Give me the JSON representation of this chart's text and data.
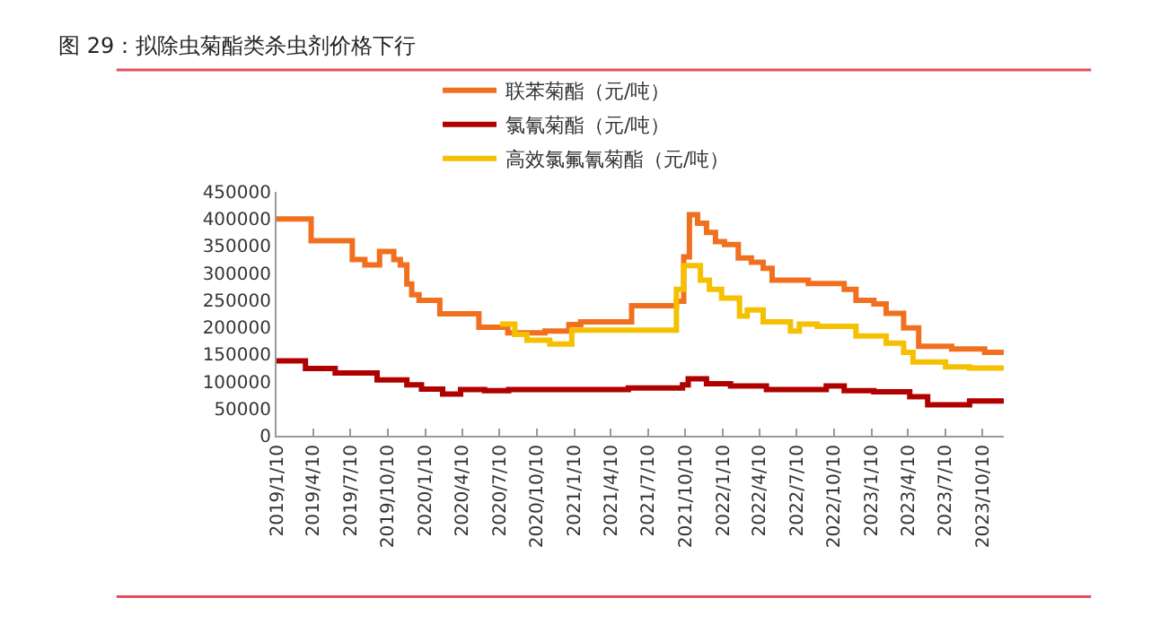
{
  "chart_data": {
    "type": "step",
    "title": "图 29：拟除虫菊酯类杀虫剂价格下行",
    "xlim": [
      "2019-01-10",
      "2023-12-01"
    ],
    "xticks": [
      {
        "value": "2019-01-10",
        "label": "2019/1/10"
      },
      {
        "value": "2019-04-10",
        "label": "2019/4/10"
      },
      {
        "value": "2019-07-10",
        "label": "2019/7/10"
      },
      {
        "value": "2019-10-10",
        "label": "2019/10/10"
      },
      {
        "value": "2020-01-10",
        "label": "2020/1/10"
      },
      {
        "value": "2020-04-10",
        "label": "2020/4/10"
      },
      {
        "value": "2020-07-10",
        "label": "2020/7/10"
      },
      {
        "value": "2020-10-10",
        "label": "2020/10/10"
      },
      {
        "value": "2021-01-10",
        "label": "2021/1/10"
      },
      {
        "value": "2021-04-10",
        "label": "2021/4/10"
      },
      {
        "value": "2021-07-10",
        "label": "2021/7/10"
      },
      {
        "value": "2021-10-10",
        "label": "2021/10/10"
      },
      {
        "value": "2022-01-10",
        "label": "2022/1/10"
      },
      {
        "value": "2022-04-10",
        "label": "2022/4/10"
      },
      {
        "value": "2022-07-10",
        "label": "2022/7/10"
      },
      {
        "value": "2022-10-10",
        "label": "2022/10/10"
      },
      {
        "value": "2023-01-10",
        "label": "2023/1/10"
      },
      {
        "value": "2023-04-10",
        "label": "2023/4/10"
      },
      {
        "value": "2023-07-10",
        "label": "2023/7/10"
      },
      {
        "value": "2023-10-10",
        "label": "2023/10/10"
      }
    ],
    "ylim": [
      0,
      450000
    ],
    "yticks": [
      0,
      50000,
      100000,
      150000,
      200000,
      250000,
      300000,
      350000,
      400000,
      450000
    ],
    "legend": "top",
    "marker": "none",
    "line_style": "solid",
    "series": [
      {
        "name": "联苯菊酯（元/吨）",
        "color": "#f07020",
        "x": [
          "2019-01-10",
          "2019-04-05",
          "2019-07-15",
          "2019-08-15",
          "2019-09-20",
          "2019-10-25",
          "2019-11-10",
          "2019-11-26",
          "2019-12-08",
          "2019-12-26",
          "2020-02-15",
          "2020-05-21",
          "2020-07-31",
          "2020-10-30",
          "2020-12-28",
          "2021-01-26",
          "2021-05-31",
          "2021-09-18",
          "2021-10-06",
          "2021-10-20",
          "2021-11-09",
          "2021-12-01",
          "2021-12-23",
          "2022-01-14",
          "2022-02-17",
          "2022-03-21",
          "2022-04-19",
          "2022-05-11",
          "2022-08-08",
          "2022-11-04",
          "2022-12-03",
          "2023-01-16",
          "2023-02-15",
          "2023-03-30",
          "2023-05-06",
          "2023-07-26",
          "2023-10-15",
          "2023-12-01"
        ],
        "values": [
          400000,
          360000,
          325000,
          315000,
          340000,
          325000,
          315000,
          280000,
          260000,
          250000,
          225000,
          200000,
          190000,
          193000,
          205000,
          210000,
          240000,
          248000,
          330000,
          408000,
          392000,
          375000,
          358000,
          353000,
          328000,
          320000,
          309000,
          287000,
          281000,
          270000,
          250000,
          243000,
          226000,
          199000,
          165000,
          160000,
          154000,
          149000
        ]
      },
      {
        "name": "氯氰菊酯（元/吨）",
        "color": "#b00000",
        "x": [
          "2019-01-10",
          "2019-03-22",
          "2019-06-03",
          "2019-09-14",
          "2019-11-26",
          "2020-01-01",
          "2020-02-22",
          "2020-04-06",
          "2020-06-04",
          "2020-08-02",
          "2021-05-23",
          "2021-10-03",
          "2021-10-17",
          "2021-12-01",
          "2022-01-29",
          "2022-04-27",
          "2022-09-21",
          "2022-11-04",
          "2023-01-16",
          "2023-04-14",
          "2023-05-28",
          "2023-09-08",
          "2023-12-01"
        ],
        "values": [
          138000,
          124000,
          116000,
          103000,
          94000,
          86000,
          77000,
          85000,
          83000,
          85000,
          88000,
          94000,
          105000,
          96000,
          92000,
          85000,
          92000,
          83000,
          81000,
          72000,
          57000,
          64000,
          64000
        ]
      },
      {
        "name": "高效氯氟氰菊酯（元/吨）",
        "color": "#f5c000",
        "x": [
          "2020-07-12",
          "2020-08-17",
          "2020-09-16",
          "2020-11-11",
          "2021-01-04",
          "2021-09-18",
          "2021-10-06",
          "2021-11-16",
          "2021-12-08",
          "2022-01-07",
          "2022-02-20",
          "2022-03-11",
          "2022-04-19",
          "2022-06-25",
          "2022-07-17",
          "2022-08-30",
          "2022-12-03",
          "2023-02-15",
          "2023-03-30",
          "2023-04-22",
          "2023-07-11",
          "2023-09-08",
          "2023-12-01"
        ],
        "values": [
          206000,
          187000,
          176000,
          169000,
          195000,
          270000,
          314000,
          287000,
          270000,
          254000,
          221000,
          232000,
          210000,
          193000,
          206000,
          202000,
          184000,
          171000,
          154000,
          136000,
          127000,
          125000,
          125000
        ]
      }
    ]
  }
}
